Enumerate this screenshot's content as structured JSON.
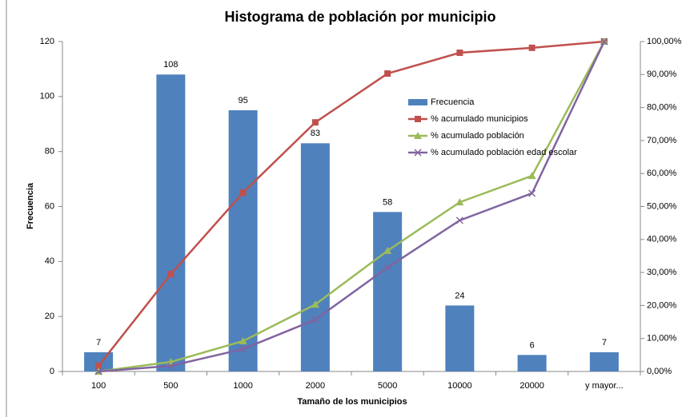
{
  "chart_data": {
    "type": "bar",
    "title": "Histograma de población por municipio",
    "x_label": "Tamaño de los municipios",
    "y_label": "Frecuencia",
    "categories": [
      "100",
      "500",
      "1000",
      "2000",
      "5000",
      "10000",
      "20000",
      "y mayor..."
    ],
    "series": [
      {
        "name": "Frecuencia",
        "type": "bar",
        "color": "#4f81bd",
        "values": [
          7,
          108,
          95,
          83,
          58,
          24,
          6,
          7
        ]
      },
      {
        "name": "% acumulado municipios",
        "type": "line",
        "marker": "square",
        "axis": "y2",
        "color": "#c0504d",
        "values": [
          1.7,
          29.5,
          54.2,
          75.5,
          90.3,
          96.6,
          98.1,
          100
        ]
      },
      {
        "name": "% acumulado población",
        "type": "line",
        "marker": "triangle",
        "axis": "y2",
        "color": "#9bbb59",
        "values": [
          0,
          2.9,
          9.2,
          20.3,
          36.6,
          51.3,
          59.3,
          100
        ]
      },
      {
        "name": "% acumulado población edad escolar",
        "type": "line",
        "marker": "x",
        "axis": "y2",
        "color": "#8064a2",
        "values": [
          0,
          1.7,
          6.8,
          15.7,
          31.5,
          45.8,
          54,
          100
        ]
      }
    ],
    "ylim": [
      0,
      120
    ],
    "yticks": [
      0,
      20,
      40,
      60,
      80,
      100,
      120
    ],
    "y2lim": [
      0,
      100
    ],
    "y2ticks": [
      {
        "value": 0,
        "label": "0,00%"
      },
      {
        "value": 10,
        "label": "10,00%"
      },
      {
        "value": 20,
        "label": "20,00%"
      },
      {
        "value": 30,
        "label": "30,00%"
      },
      {
        "value": 40,
        "label": "40,00%"
      },
      {
        "value": 50,
        "label": "50,00%"
      },
      {
        "value": 60,
        "label": "60,00%"
      },
      {
        "value": 70,
        "label": "70,00%"
      },
      {
        "value": 80,
        "label": "80,00%"
      },
      {
        "value": 90,
        "label": "90,00%"
      },
      {
        "value": 100,
        "label": "100,00%"
      }
    ],
    "grid": false,
    "legend": "inside-right"
  }
}
